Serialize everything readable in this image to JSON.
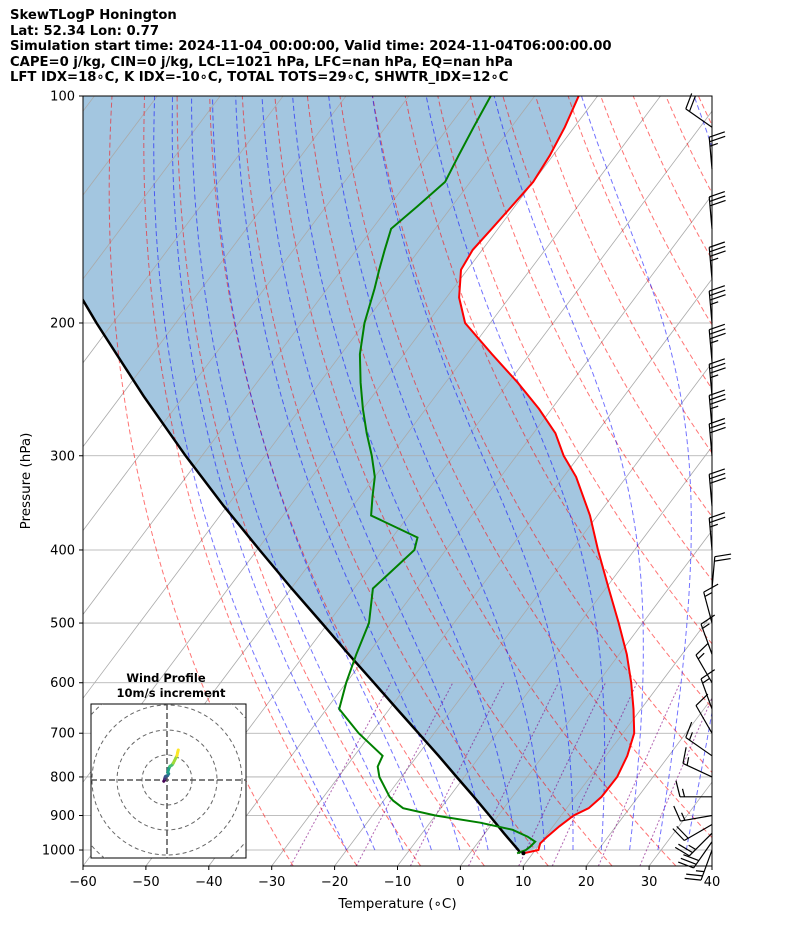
{
  "header": {
    "line1": "SkewTLogP Honington",
    "line2": "Lat: 52.34   Lon: 0.77",
    "line3": "Simulation start time: 2024-11-04_00:00:00, Valid time: 2024-11-04T06:00:00.00",
    "line4": "CAPE=0 j/kg, CIN=0 j/kg, LCL=1021 hPa, LFC=nan hPa, EQ=nan hPa",
    "line5": "LFT IDX=18∘C, K IDX=-10∘C, TOTAL TOTS=29∘C, SHWTR_IDX=12∘C"
  },
  "chart_data": [
    {
      "type": "line",
      "subtype": "skew-t log-p",
      "xlabel": "Temperature (∘C)",
      "ylabel": "Pressure (hPa)",
      "xlim": [
        -60,
        40
      ],
      "ylim": [
        1050,
        100
      ],
      "y_scale": "log",
      "grid": true,
      "x_ticks": [
        -60,
        -50,
        -40,
        -30,
        -20,
        -10,
        0,
        10,
        20,
        30,
        40
      ],
      "y_ticks": [
        100,
        200,
        300,
        400,
        500,
        600,
        700,
        800,
        900,
        1000
      ],
      "series": [
        {
          "role": "temperature",
          "color": "#ff0000",
          "pressure": [
            1010,
            1000,
            980,
            960,
            930,
            900,
            880,
            850,
            800,
            750,
            700,
            650,
            600,
            550,
            500,
            450,
            400,
            360,
            320,
            300,
            280,
            260,
            240,
            220,
            200,
            185,
            170,
            160,
            150,
            140,
            130,
            120,
            110,
            100
          ],
          "values": [
            8.5,
            10.5,
            10.0,
            10.3,
            11.0,
            12.0,
            13.5,
            14.2,
            14.3,
            13.4,
            11.8,
            8.8,
            5.3,
            1.2,
            -3.8,
            -9.5,
            -15.8,
            -21.2,
            -28.0,
            -32.5,
            -36.5,
            -42.0,
            -48.5,
            -56.0,
            -64.0,
            -68.0,
            -71.0,
            -71.5,
            -71.0,
            -70.5,
            -70.0,
            -70.5,
            -71.5,
            -73.0
          ]
        },
        {
          "role": "dewpoint",
          "color": "#008000",
          "pressure": [
            1010,
            1000,
            990,
            975,
            960,
            940,
            920,
            900,
            880,
            860,
            850,
            800,
            775,
            750,
            700,
            650,
            600,
            550,
            500,
            450,
            400,
            385,
            360,
            340,
            320,
            300,
            280,
            260,
            240,
            220,
            200,
            180,
            170,
            160,
            150,
            140,
            130,
            120,
            110,
            100
          ],
          "values": [
            7.5,
            8.5,
            8.8,
            9.0,
            7.2,
            4.0,
            -2.0,
            -10.0,
            -16.0,
            -18.5,
            -19.5,
            -23.5,
            -25.0,
            -25.5,
            -32.0,
            -38.0,
            -40.0,
            -41.8,
            -43.5,
            -47.0,
            -45.0,
            -46.0,
            -56.0,
            -58.0,
            -60.0,
            -63.0,
            -66.5,
            -70.0,
            -73.5,
            -77.0,
            -80.0,
            -82.5,
            -84.0,
            -85.5,
            -87.0,
            -85.5,
            -84.0,
            -85.0,
            -86.0,
            -87.0
          ]
        },
        {
          "role": "parcel",
          "color": "#000000",
          "pressure": [
            1010,
            1000,
            950,
            900,
            850,
            800,
            750,
            700,
            650,
            600,
            550,
            500,
            450,
            400,
            350,
            300,
            250,
            200,
            150,
            100
          ],
          "values": [
            8.0,
            7.3,
            3.0,
            -1.4,
            -6.1,
            -11.2,
            -16.6,
            -22.5,
            -28.8,
            -35.6,
            -43.0,
            -51.0,
            -59.9,
            -69.6,
            -80.5,
            -92.6,
            -106.4,
            -122.6,
            -142.7,
            -170.6
          ]
        }
      ],
      "winds": [
        {
          "pressure": 1000,
          "speed_kt": 25,
          "direction_deg": 200
        },
        {
          "pressure": 975,
          "speed_kt": 30,
          "direction_deg": 215
        },
        {
          "pressure": 950,
          "speed_kt": 25,
          "direction_deg": 225
        },
        {
          "pressure": 925,
          "speed_kt": 20,
          "direction_deg": 240
        },
        {
          "pressure": 900,
          "speed_kt": 15,
          "direction_deg": 260
        },
        {
          "pressure": 850,
          "speed_kt": 15,
          "direction_deg": 270
        },
        {
          "pressure": 800,
          "speed_kt": 15,
          "direction_deg": 295
        },
        {
          "pressure": 750,
          "speed_kt": 15,
          "direction_deg": 305
        },
        {
          "pressure": 700,
          "speed_kt": 10,
          "direction_deg": 330
        },
        {
          "pressure": 650,
          "speed_kt": 15,
          "direction_deg": 340
        },
        {
          "pressure": 600,
          "speed_kt": 15,
          "direction_deg": 330
        },
        {
          "pressure": 550,
          "speed_kt": 15,
          "direction_deg": 340
        },
        {
          "pressure": 500,
          "speed_kt": 15,
          "direction_deg": 345
        },
        {
          "pressure": 450,
          "speed_kt": 20,
          "direction_deg": 5
        },
        {
          "pressure": 400,
          "speed_kt": 25,
          "direction_deg": 355
        },
        {
          "pressure": 350,
          "speed_kt": 30,
          "direction_deg": 355
        },
        {
          "pressure": 300,
          "speed_kt": 30,
          "direction_deg": 355
        },
        {
          "pressure": 275,
          "speed_kt": 35,
          "direction_deg": 355
        },
        {
          "pressure": 250,
          "speed_kt": 35,
          "direction_deg": 355
        },
        {
          "pressure": 225,
          "speed_kt": 35,
          "direction_deg": 355
        },
        {
          "pressure": 200,
          "speed_kt": 35,
          "direction_deg": 355
        },
        {
          "pressure": 175,
          "speed_kt": 35,
          "direction_deg": 355
        },
        {
          "pressure": 150,
          "speed_kt": 30,
          "direction_deg": 355
        },
        {
          "pressure": 125,
          "speed_kt": 25,
          "direction_deg": 355
        },
        {
          "pressure": 110,
          "speed_kt": 20,
          "direction_deg": 305
        }
      ],
      "colors": {
        "cape_fill": "#a3c6e0",
        "dry_adiabats": "#ff0000",
        "moist_adiabats": "#0000ff",
        "mixing_ratio": "#800080",
        "isotherms": "#aaaaaa"
      }
    },
    {
      "type": "line",
      "subtype": "hodograph",
      "title": "Wind Profile",
      "subtitle": "10m/s increment",
      "ring_increment_ms": 10,
      "colormap": "viridis",
      "u_ms": [
        -2.6,
        -2.2,
        -1.9,
        -1.8,
        -1.6,
        -1.2,
        -0.4,
        0.5,
        1.0,
        1.3,
        0.6,
        1.0,
        1.6,
        2.4,
        4.0,
        5.0,
        6.0,
        7.0,
        8.0,
        8.5,
        9.0
      ],
      "v_ms": [
        -1.0,
        -0.4,
        0.0,
        1.0,
        2.0,
        2.8,
        3.2,
        3.5,
        4.5,
        5.0,
        6.0,
        7.5,
        9.5,
        11.0,
        12.0,
        13.5,
        15.5,
        17.5,
        19.5,
        22.0,
        24.0
      ]
    }
  ]
}
